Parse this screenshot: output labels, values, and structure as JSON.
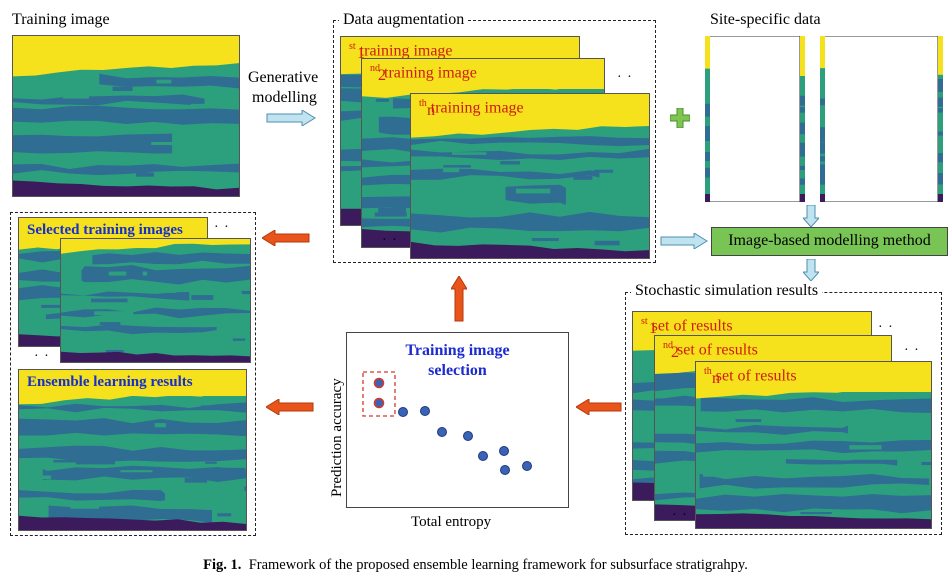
{
  "labels": {
    "training_image": "Training image",
    "generative_1": "Generative",
    "generative_2": "modelling",
    "data_augmentation": "Data augmentation",
    "site_specific": "Site-specific data",
    "method": "Image-based modelling method",
    "stochastic": "Stochastic simulation results",
    "selected": "Selected training images",
    "ensemble": "Ensemble learning results",
    "selection_1": "Training image",
    "selection_2": "selection",
    "ylabel": "Prediction accuracy",
    "xlabel": "Total entropy",
    "aug_1_num": "1",
    "aug_1_sup": "st",
    "aug_1_rest": " training image",
    "aug_2_num": "2",
    "aug_2_sup": "nd",
    "aug_2_rest": " training image",
    "aug_n_num": "n",
    "aug_n_sup": "th",
    "aug_n_rest": " training image",
    "res_1_num": "1",
    "res_1_sup": "st",
    "res_1_rest": " set of results",
    "res_2_num": "2",
    "res_2_sup": "nd",
    "res_2_rest": " set of results",
    "res_n_num": "n",
    "res_n_sup": "th",
    "res_n_rest": " set of results",
    "ellipsis": "· ·"
  },
  "caption": {
    "fig": "Fig. 1.",
    "text": "Framework of the proposed ensemble learning framework for subsurface stratigrahpy."
  },
  "colors": {
    "yellow": "#f6e11d",
    "green": "#2ca07c",
    "blue": "#2f6d93",
    "purple": "#3b1b5c",
    "arrow_red": "#e8541a",
    "arrow_blue": "#9fd4e8"
  }
}
